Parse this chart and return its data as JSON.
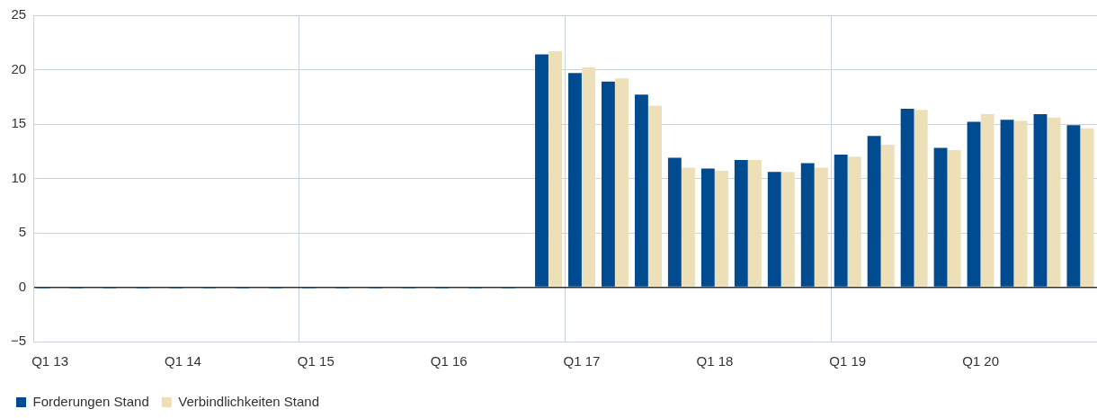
{
  "chart_data": {
    "type": "bar",
    "categories": [
      "Q1 13",
      null,
      null,
      null,
      "Q1 14",
      null,
      null,
      null,
      "Q1 15",
      null,
      null,
      null,
      "Q1 16",
      null,
      null,
      null,
      "Q1 17",
      null,
      null,
      null,
      "Q1 18",
      null,
      null,
      null,
      "Q1 19",
      null,
      null,
      null,
      "Q1 20",
      null,
      null,
      null
    ],
    "series": [
      {
        "name": "Forderungen Stand",
        "color": "#004a8f",
        "values": [
          -0.1,
          -0.1,
          -0.1,
          -0.1,
          -0.1,
          -0.1,
          -0.1,
          -0.1,
          -0.1,
          -0.1,
          -0.1,
          -0.1,
          -0.1,
          -0.1,
          -0.1,
          21.4,
          19.7,
          18.9,
          17.7,
          11.9,
          10.9,
          11.7,
          10.6,
          11.4,
          12.2,
          13.9,
          16.4,
          12.8,
          15.2,
          15.4,
          15.9,
          14.9
        ]
      },
      {
        "name": "Verbindlichkeiten Stand",
        "color": "#ede0b9",
        "values": [
          null,
          null,
          null,
          null,
          null,
          null,
          null,
          null,
          null,
          null,
          null,
          null,
          null,
          null,
          null,
          21.7,
          20.2,
          19.2,
          16.7,
          11.0,
          10.7,
          11.7,
          10.6,
          11.0,
          12.0,
          13.1,
          16.3,
          12.6,
          15.9,
          15.3,
          15.6,
          14.6
        ]
      }
    ],
    "ylim": [
      -5,
      25
    ],
    "yticks": [
      {
        "value": -5,
        "label": "−5"
      },
      0,
      5,
      10,
      15,
      20,
      25
    ],
    "grid": true,
    "legend": "bottom left"
  }
}
